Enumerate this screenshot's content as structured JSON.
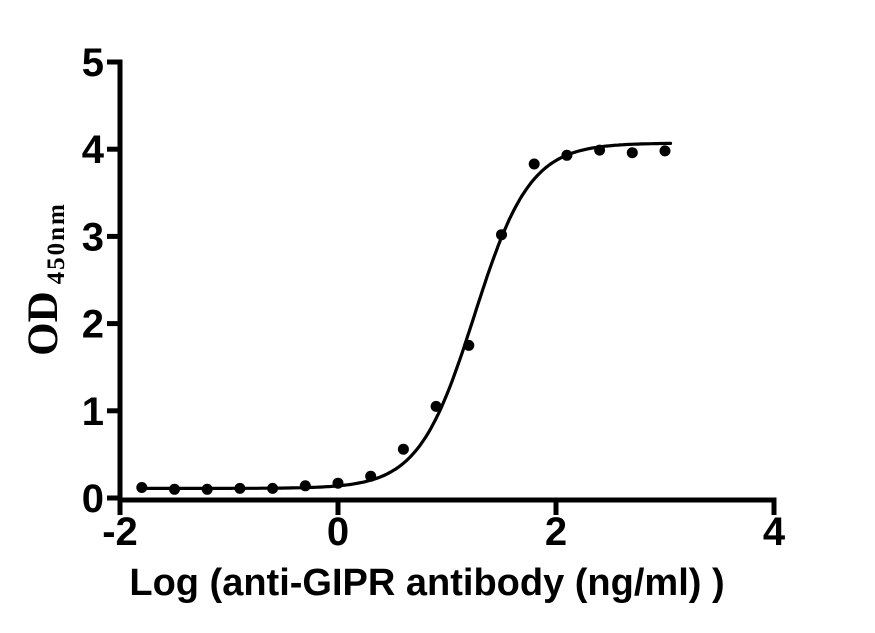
{
  "figure": {
    "background": "#ffffff",
    "ink_color": "#000000"
  },
  "chart_data": {
    "type": "scatter",
    "title": "",
    "xlabel": "Log（anti-GIPR antibody（ng/ml））",
    "ylabel_main": "OD",
    "ylabel_sub": "450nm",
    "xlim": [
      -2,
      4
    ],
    "ylim": [
      0,
      5
    ],
    "x_ticks": [
      -2,
      0,
      2,
      4
    ],
    "y_ticks": [
      0,
      1,
      2,
      3,
      4,
      5
    ],
    "grid": false,
    "legend_position": "none",
    "marker": {
      "shape": "circle",
      "color": "#000000"
    },
    "line_color": "#000000",
    "series": [
      {
        "x": [
          -1.8,
          -1.5,
          -1.2,
          -0.9,
          -0.6,
          -0.3,
          0.0,
          0.3,
          0.6,
          0.9,
          1.2,
          1.5,
          1.8,
          2.1,
          2.4,
          2.7,
          3.0
        ],
        "y": [
          0.12,
          0.1,
          0.1,
          0.11,
          0.11,
          0.14,
          0.17,
          0.25,
          0.56,
          1.05,
          1.75,
          3.02,
          3.83,
          3.93,
          3.99,
          3.96,
          3.98
        ]
      }
    ],
    "fit_curve": {
      "model": "four_parameter_logistic",
      "bottom": 0.11,
      "top": 4.07,
      "log_ec50": 1.25,
      "hill_slope": 1.7,
      "x_start": -1.81,
      "x_end": 3.05
    }
  }
}
